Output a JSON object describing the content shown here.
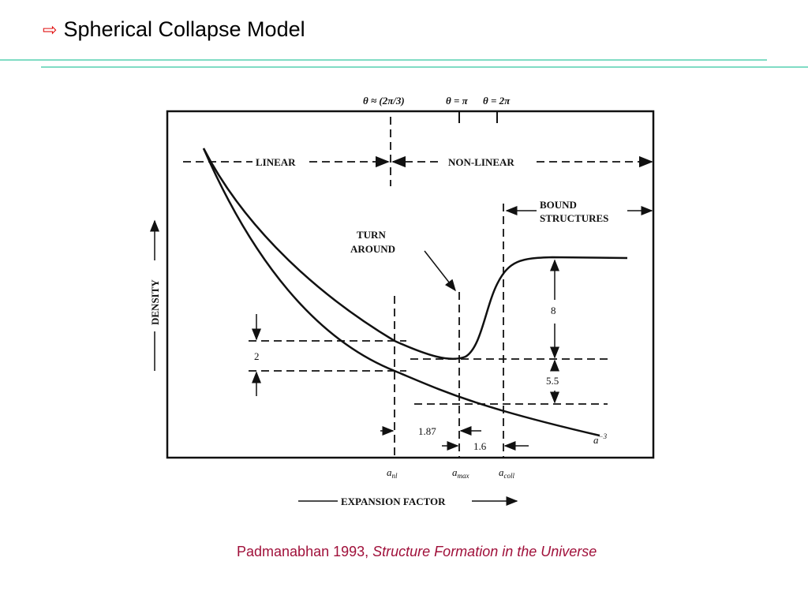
{
  "slide": {
    "title": "Spherical Collapse Model",
    "title_icon": "hollow-right-arrow",
    "accent_color": "#80dcc4",
    "caption_author": "Padmanabhan 1993, ",
    "caption_work": "Structure Formation in the Universe",
    "caption_color": "#a0103a"
  },
  "figure": {
    "theta_labels": [
      "θ ≈ (2π/3)",
      "θ = π",
      "θ = 2π"
    ],
    "regime_linear": "LINEAR",
    "regime_nonlinear": "NON-LINEAR",
    "turn_around": [
      "TURN",
      "AROUND"
    ],
    "bound_structures": [
      "BOUND",
      "STRUCTURES"
    ],
    "ylabel": "DENSITY",
    "xlabel": "EXPANSION FACTOR",
    "x_markers": {
      "a_nl": "a",
      "a_nl_sub": "nl",
      "a_max": "a",
      "a_max_sub": "max",
      "a_coll": "a",
      "a_coll_sub": "coll"
    },
    "ratio_2": "2",
    "ratio_8": "8",
    "ratio_5_5": "5.5",
    "ratio_1_87": "1.87",
    "ratio_1_6": "1.6",
    "curve_label": "a",
    "curve_label_sup": "−3"
  }
}
